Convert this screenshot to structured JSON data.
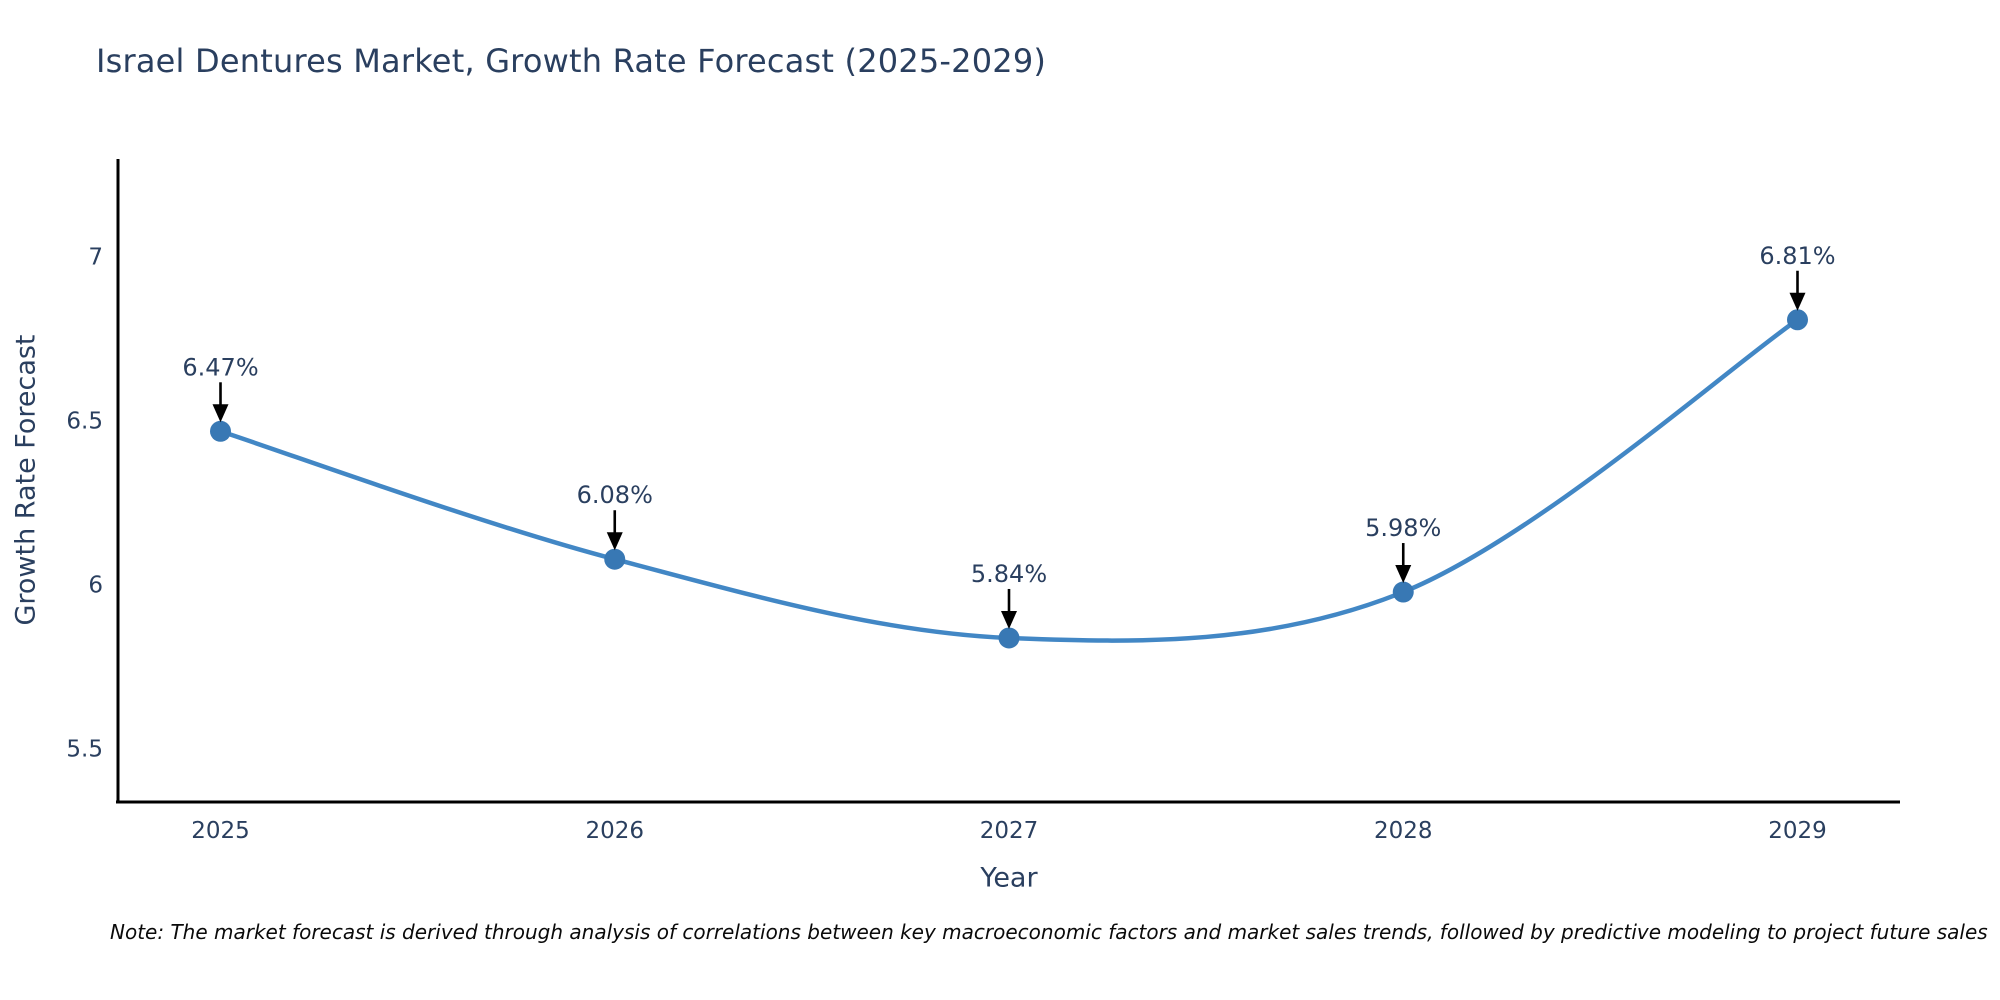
{
  "title": "Israel Dentures Market, Growth Rate Forecast (2025-2029)",
  "note": "Note: The market forecast is derived through analysis of correlations between key macroeconomic factors and market sales trends, followed by predictive modeling to project future sales",
  "chart_data": {
    "type": "line",
    "title": "Israel Dentures Market, Growth Rate Forecast (2025-2029)",
    "xlabel": "Year",
    "ylabel": "Growth Rate Forecast",
    "x": [
      2025,
      2026,
      2027,
      2028,
      2029
    ],
    "values": [
      6.47,
      6.08,
      5.84,
      5.98,
      6.81
    ],
    "point_labels": [
      "6.47%",
      "6.08%",
      "5.84%",
      "5.98%",
      "6.81%"
    ],
    "xtick_labels": [
      "2025",
      "2026",
      "2027",
      "2028",
      "2029"
    ],
    "yticks": [
      5.5,
      6,
      6.5,
      7
    ],
    "ytick_labels": [
      "5.5",
      "6",
      "6.5",
      "7"
    ],
    "xlim": [
      2024.74,
      2029.26
    ],
    "ylim": [
      5.34,
      7.3
    ],
    "grid": false,
    "legend": "none",
    "line_smoothing": "spline",
    "colors": {
      "line": "#4287c5",
      "marker": "#3878b4",
      "axis_line": "#000000",
      "tick_text": "#2a3f5f",
      "annotation_text": "#2a3f5f",
      "annotation_arrow": "#000000",
      "title_text": "#2a3f5f",
      "background": "#ffffff"
    }
  }
}
